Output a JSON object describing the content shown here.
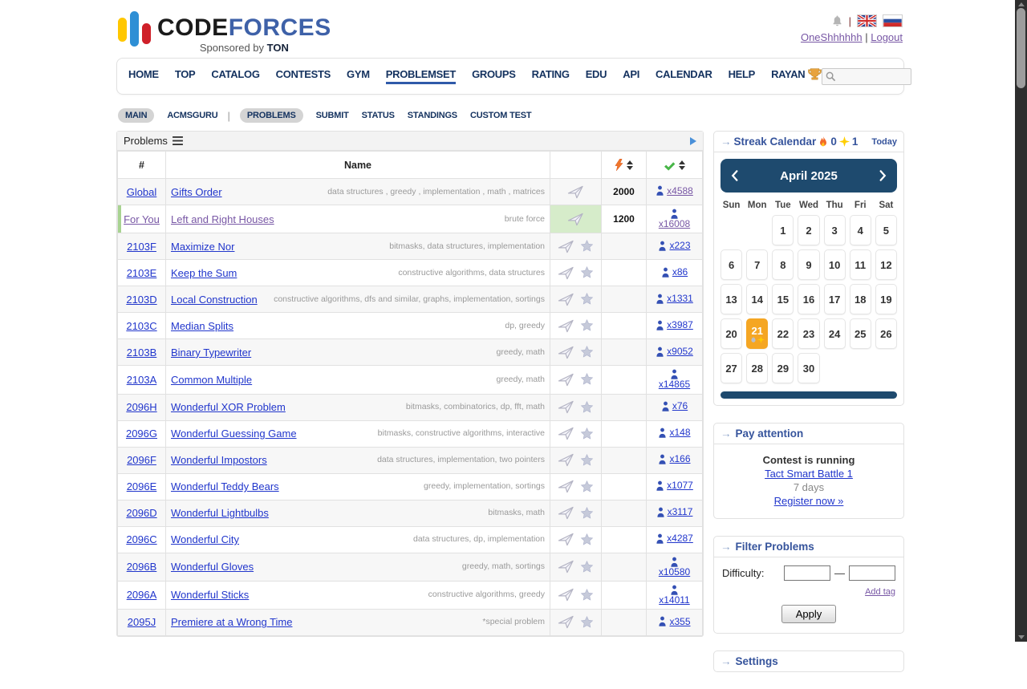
{
  "header": {
    "logo_code": "CODE",
    "logo_forces": "FORCES",
    "sponsored_prefix": "Sponsored by ",
    "sponsored_brand": "TON",
    "lang_sep": "|",
    "username": "OneShhhhhh",
    "user_sep": "|",
    "logout": "Logout"
  },
  "nav": {
    "items": [
      {
        "label": "HOME"
      },
      {
        "label": "TOP"
      },
      {
        "label": "CATALOG"
      },
      {
        "label": "CONTESTS"
      },
      {
        "label": "GYM"
      },
      {
        "label": "PROBLEMSET",
        "active": true
      },
      {
        "label": "GROUPS"
      },
      {
        "label": "RATING"
      },
      {
        "label": "EDU"
      },
      {
        "label": "API"
      },
      {
        "label": "CALENDAR"
      },
      {
        "label": "HELP"
      },
      {
        "label": "RAYAN",
        "trophy": true
      }
    ],
    "search_value": ""
  },
  "subnav": {
    "items": [
      {
        "label": "MAIN",
        "pill": true
      },
      {
        "label": "ACMSGURU"
      },
      {
        "divider": true
      },
      {
        "label": "PROBLEMS",
        "pill": true
      },
      {
        "label": "SUBMIT"
      },
      {
        "label": "STATUS"
      },
      {
        "label": "STANDINGS"
      },
      {
        "label": "CUSTOM TEST"
      }
    ]
  },
  "problems": {
    "caption": "Problems",
    "col_id": "#",
    "col_name": "Name",
    "icons": {
      "caption": "list-icon",
      "expand": "play-icon",
      "difficulty": "lightning-icon",
      "solved": "check-icon",
      "submit": "paper-plane-icon",
      "favorite": "star-icon",
      "solvers": "person-icon"
    },
    "rows": [
      {
        "id": "Global",
        "name": "Gifts Order",
        "tags": "data structures , greedy , implementation , math , matrices",
        "difficulty": "2000",
        "solved": "x4588",
        "star": false,
        "solved_visited": true
      },
      {
        "id": "For You",
        "name": "Left and Right Houses",
        "tags": "brute force",
        "difficulty": "1200",
        "solved": "x16008",
        "star": false,
        "accepted": true,
        "for_you": true,
        "visited": true,
        "two_line": true,
        "solved_visited": true
      },
      {
        "id": "2103F",
        "name": "Maximize Nor",
        "tags": "bitmasks, data structures, implementation",
        "difficulty": "",
        "solved": "x223",
        "star": true
      },
      {
        "id": "2103E",
        "name": "Keep the Sum",
        "tags": "constructive algorithms, data structures",
        "difficulty": "",
        "solved": "x86",
        "star": true
      },
      {
        "id": "2103D",
        "name": "Local Construction",
        "tags": "constructive algorithms, dfs and similar, graphs, implementation, sortings",
        "difficulty": "",
        "solved": "x1331",
        "star": true
      },
      {
        "id": "2103C",
        "name": "Median Splits",
        "tags": "dp, greedy",
        "difficulty": "",
        "solved": "x3987",
        "star": true
      },
      {
        "id": "2103B",
        "name": "Binary Typewriter",
        "tags": "greedy, math",
        "difficulty": "",
        "solved": "x9052",
        "star": true
      },
      {
        "id": "2103A",
        "name": "Common Multiple",
        "tags": "greedy, math",
        "difficulty": "",
        "solved": "x14865",
        "star": true,
        "two_line": true
      },
      {
        "id": "2096H",
        "name": "Wonderful XOR Problem",
        "tags": "bitmasks, combinatorics, dp, fft, math",
        "difficulty": "",
        "solved": "x76",
        "star": true
      },
      {
        "id": "2096G",
        "name": "Wonderful Guessing Game",
        "tags": "bitmasks, constructive algorithms, interactive",
        "difficulty": "",
        "solved": "x148",
        "star": true
      },
      {
        "id": "2096F",
        "name": "Wonderful Impostors",
        "tags": "data structures, implementation, two pointers",
        "difficulty": "",
        "solved": "x166",
        "star": true
      },
      {
        "id": "2096E",
        "name": "Wonderful Teddy Bears",
        "tags": "greedy, implementation, sortings",
        "difficulty": "",
        "solved": "x1077",
        "star": true
      },
      {
        "id": "2096D",
        "name": "Wonderful Lightbulbs",
        "tags": "bitmasks, math",
        "difficulty": "",
        "solved": "x3117",
        "star": true
      },
      {
        "id": "2096C",
        "name": "Wonderful City",
        "tags": "data structures, dp, implementation",
        "difficulty": "",
        "solved": "x4287",
        "star": true
      },
      {
        "id": "2096B",
        "name": "Wonderful Gloves",
        "tags": "greedy, math, sortings",
        "difficulty": "",
        "solved": "x10580",
        "star": true,
        "two_line": true
      },
      {
        "id": "2096A",
        "name": "Wonderful Sticks",
        "tags": "constructive algorithms, greedy",
        "difficulty": "",
        "solved": "x14011",
        "star": true,
        "two_line": true
      },
      {
        "id": "2095J",
        "name": "Premiere at a Wrong Time",
        "tags": "*special problem",
        "difficulty": "",
        "solved": "x355",
        "star": true
      }
    ]
  },
  "sidebar": {
    "streak": {
      "title": "Streak Calendar",
      "fire_count": "0",
      "spark_count": "1",
      "today": "Today",
      "month": "April 2025",
      "weekdays": [
        "Sun",
        "Mon",
        "Tue",
        "Wed",
        "Thu",
        "Fri",
        "Sat"
      ],
      "days": [
        1,
        2,
        3,
        4,
        5,
        6,
        7,
        8,
        9,
        10,
        11,
        12,
        13,
        14,
        15,
        16,
        17,
        18,
        19,
        20,
        21,
        22,
        23,
        24,
        25,
        26,
        27,
        28,
        29,
        30
      ],
      "first_day_col": 3,
      "highlight_day": 21
    },
    "attention": {
      "title": "Pay attention",
      "status": "Contest is running",
      "contest": "Tact Smart Battle 1",
      "length": "7 days",
      "register": "Register now »"
    },
    "filter": {
      "title": "Filter Problems",
      "difficulty_label": "Difficulty:",
      "dash": "—",
      "add_tag": "Add tag",
      "apply": "Apply"
    },
    "settings": {
      "title": "Settings"
    }
  },
  "colors": {
    "link_blue": "#2136cc",
    "link_purple": "#7857a5",
    "nav_navy": "#14325f",
    "accent_blue": "#36549c",
    "calendar_navy": "#1e4a6e",
    "highlight_orange": "#f5a623",
    "accepted_green": "#d6ecca",
    "for_you_stripe": "#a8d391"
  }
}
